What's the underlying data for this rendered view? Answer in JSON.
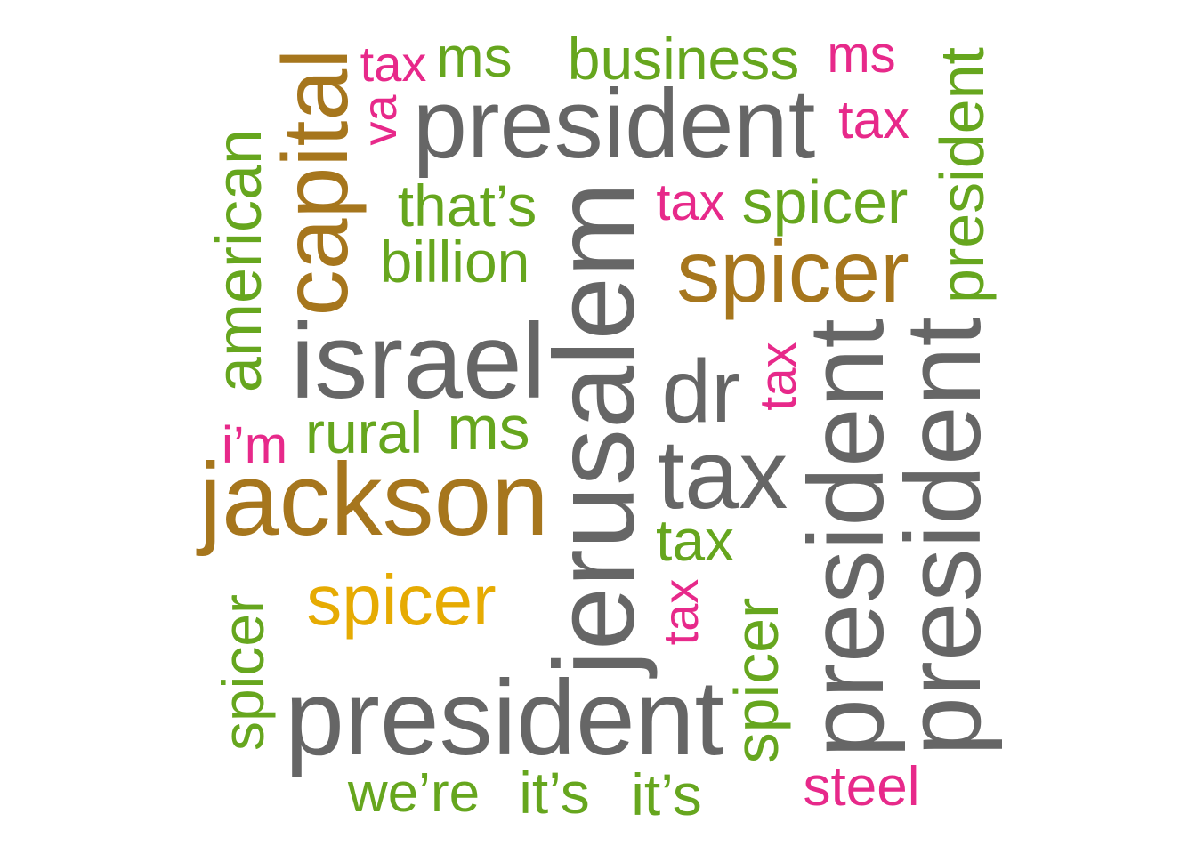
{
  "colors": {
    "gray": "#666666",
    "brown": "#a6761d",
    "green": "#66a61e",
    "pink": "#e7298a",
    "gold": "#e6ab02"
  },
  "words": [
    {
      "text": "tax",
      "color": "pink"
    },
    {
      "text": "ms",
      "color": "green"
    },
    {
      "text": "business",
      "color": "green"
    },
    {
      "text": "ms",
      "color": "pink"
    },
    {
      "text": "president",
      "color": "green"
    },
    {
      "text": "capital",
      "color": "brown"
    },
    {
      "text": "va",
      "color": "pink"
    },
    {
      "text": "president",
      "color": "gray"
    },
    {
      "text": "tax",
      "color": "pink"
    },
    {
      "text": "american",
      "color": "green"
    },
    {
      "text": "that’s",
      "color": "green"
    },
    {
      "text": "jerusalem",
      "color": "gray"
    },
    {
      "text": "tax",
      "color": "pink"
    },
    {
      "text": "spicer",
      "color": "green"
    },
    {
      "text": "billion",
      "color": "green"
    },
    {
      "text": "spicer",
      "color": "brown"
    },
    {
      "text": "israel",
      "color": "gray"
    },
    {
      "text": "dr",
      "color": "gray"
    },
    {
      "text": "tax",
      "color": "pink"
    },
    {
      "text": "president",
      "color": "gray"
    },
    {
      "text": "president",
      "color": "gray"
    },
    {
      "text": "i’m",
      "color": "pink"
    },
    {
      "text": "rural",
      "color": "green"
    },
    {
      "text": "ms",
      "color": "green"
    },
    {
      "text": "jackson",
      "color": "brown"
    },
    {
      "text": "tax",
      "color": "gray"
    },
    {
      "text": "tax",
      "color": "green"
    },
    {
      "text": "spicer",
      "color": "gold"
    },
    {
      "text": "spicer",
      "color": "green"
    },
    {
      "text": "tax",
      "color": "pink"
    },
    {
      "text": "spicer",
      "color": "green"
    },
    {
      "text": "president",
      "color": "gray"
    },
    {
      "text": "we’re",
      "color": "green"
    },
    {
      "text": "it’s",
      "color": "green"
    },
    {
      "text": "it’s",
      "color": "green"
    },
    {
      "text": "steel",
      "color": "pink"
    }
  ]
}
